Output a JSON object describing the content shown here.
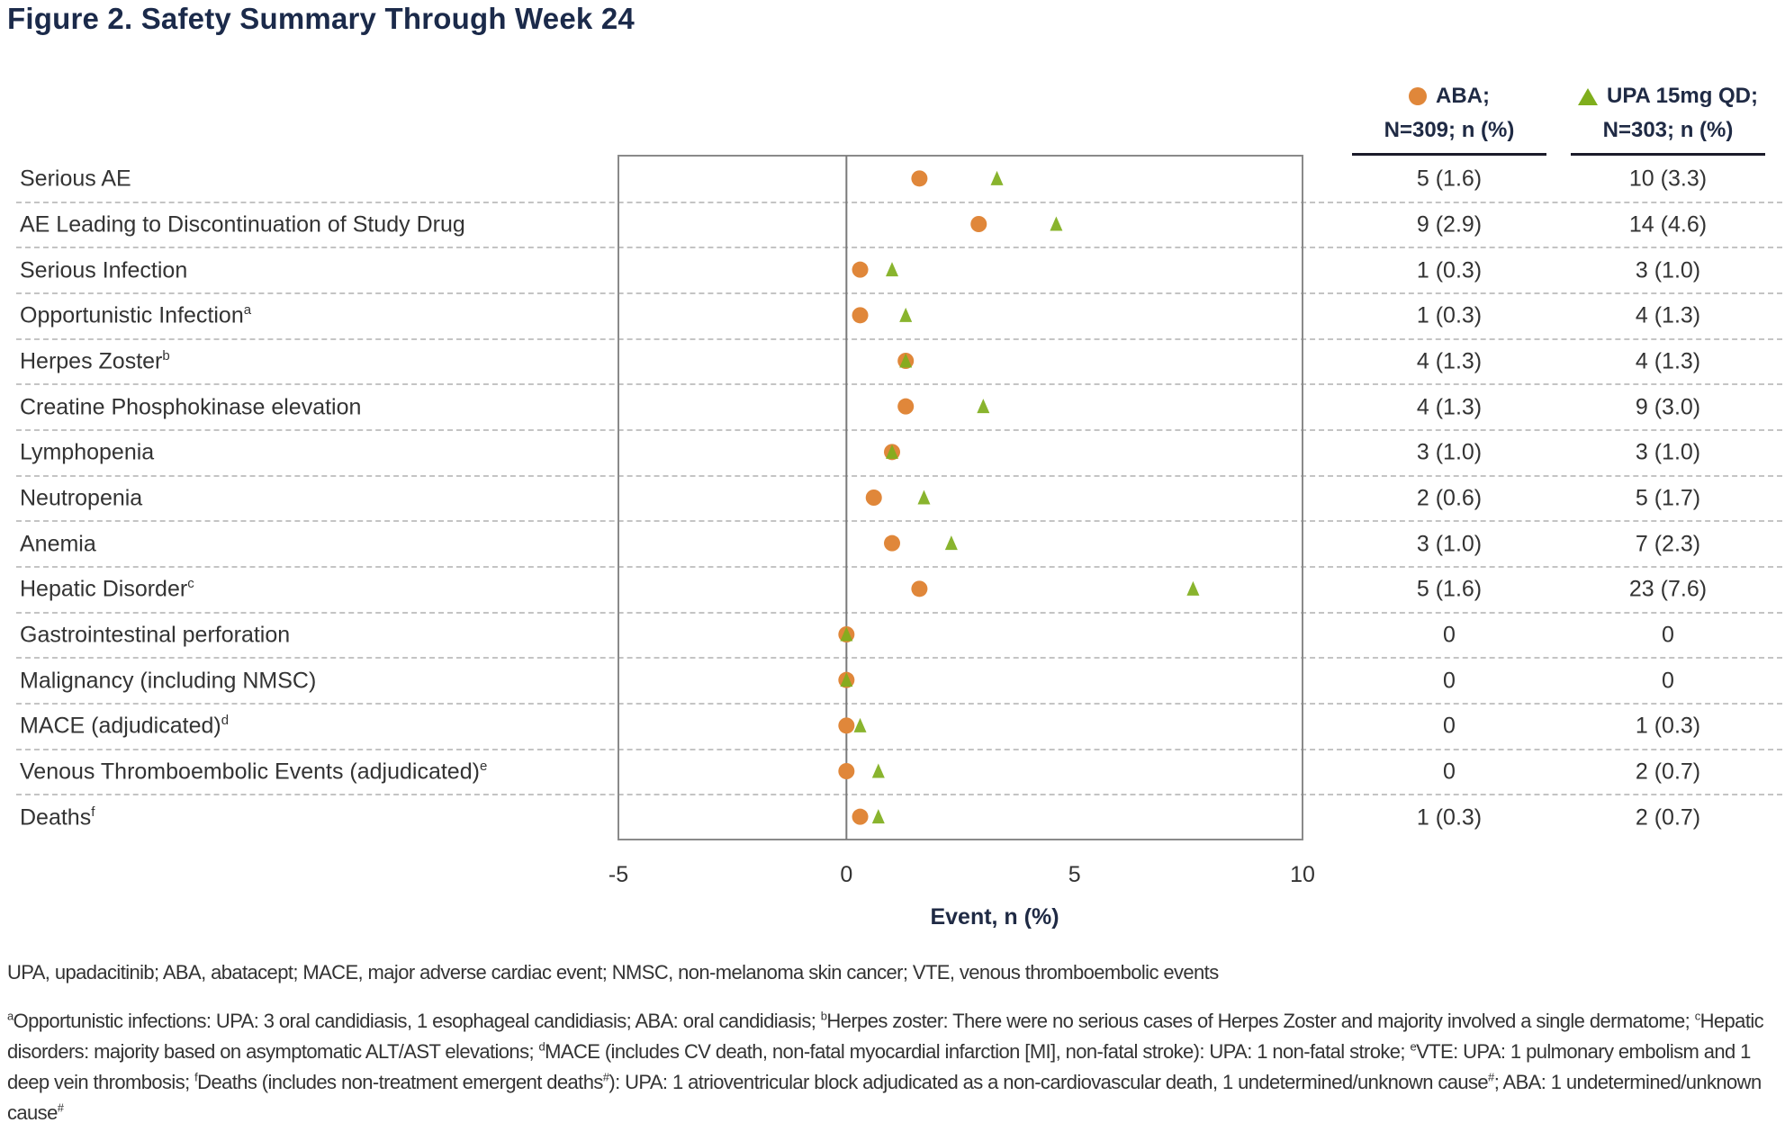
{
  "title": "Figure 2. Safety Summary Through Week 24",
  "colors": {
    "aba": "#e0873a",
    "upa": "#7fae1c",
    "frame": "#8a8a8a",
    "grid": "#c4c4c4",
    "title": "#1b2a4a"
  },
  "legend": {
    "aba": {
      "icon": "circle-marker-icon",
      "line1": "ABA;",
      "line2": "N=309; n (%)"
    },
    "upa": {
      "icon": "triangle-marker-icon",
      "line1": "UPA 15mg QD;",
      "line2": "N=303; n (%)"
    }
  },
  "chart_data": {
    "type": "scatter",
    "title": "Figure 2. Safety Summary Through Week 24",
    "xlabel": "Event, n (%)",
    "ylabel": "",
    "xlim": [
      -5,
      10
    ],
    "xticks": [
      "-5",
      "0",
      "5",
      "10"
    ],
    "xtick_values": [
      -5,
      0,
      5,
      10
    ],
    "reference_line_x": 0,
    "grid": "horizontal dashed row separators",
    "legend_position": "top-right",
    "categories": [
      {
        "label": "Serious AE",
        "sup": ""
      },
      {
        "label": "AE Leading to Discontinuation of Study Drug",
        "sup": ""
      },
      {
        "label": "Serious Infection",
        "sup": ""
      },
      {
        "label": "Opportunistic Infection",
        "sup": "a"
      },
      {
        "label": "Herpes Zoster",
        "sup": "b"
      },
      {
        "label": "Creatine Phosphokinase  elevation",
        "sup": ""
      },
      {
        "label": "Lymphopenia",
        "sup": ""
      },
      {
        "label": "Neutropenia",
        "sup": ""
      },
      {
        "label": "Anemia",
        "sup": ""
      },
      {
        "label": "Hepatic Disorder",
        "sup": "c"
      },
      {
        "label": "Gastrointestinal perforation",
        "sup": ""
      },
      {
        "label": "Malignancy (including NMSC)",
        "sup": ""
      },
      {
        "label": "MACE (adjudicated)",
        "sup": "d"
      },
      {
        "label": "Venous Thromboembolic  Events (adjudicated)",
        "sup": "e"
      },
      {
        "label": "Deaths",
        "sup": "f"
      }
    ],
    "series": [
      {
        "name": "ABA; N=309",
        "marker": "circle",
        "values": [
          1.6,
          2.9,
          0.3,
          0.3,
          1.3,
          1.3,
          1.0,
          0.6,
          1.0,
          1.6,
          0,
          0,
          0,
          0,
          0.3
        ],
        "display": [
          "5 (1.6)",
          "9 (2.9)",
          "1 (0.3)",
          "1 (0.3)",
          "4 (1.3)",
          "4 (1.3)",
          "3 (1.0)",
          "2 (0.6)",
          "3 (1.0)",
          "5 (1.6)",
          "0",
          "0",
          "0",
          "0",
          "1 (0.3)"
        ]
      },
      {
        "name": "UPA 15mg QD; N=303",
        "marker": "triangle",
        "values": [
          3.3,
          4.6,
          1.0,
          1.3,
          1.3,
          3.0,
          1.0,
          1.7,
          2.3,
          7.6,
          0,
          0,
          0.3,
          0.7,
          0.7
        ],
        "display": [
          "10 (3.3)",
          "14 (4.6)",
          "3 (1.0)",
          "4 (1.3)",
          "4 (1.3)",
          "9 (3.0)",
          "3 (1.0)",
          "5 (1.7)",
          "7 (2.3)",
          "23 (7.6)",
          "0",
          "0",
          "1 (0.3)",
          "2 (0.7)",
          "2 (0.7)"
        ]
      }
    ]
  },
  "abbreviations": "UPA, upadacitinib; ABA, abatacept; MACE, major adverse cardiac event; NMSC, non-melanoma skin cancer; VTE, venous thromboembolic events",
  "footnotes": [
    {
      "sup": "a",
      "text": "Opportunistic infections: UPA: 3 oral candidiasis, 1 esophageal candidiasis; ABA: oral candidiasis; "
    },
    {
      "sup": "b",
      "text": "Herpes zoster: There were no serious cases of Herpes Zoster and majority involved a single dermatome; "
    },
    {
      "sup": "c",
      "text": "Hepatic disorders: majority based on asymptomatic ALT/AST elevations; "
    },
    {
      "sup": "d",
      "text": "MACE (includes CV death, non-fatal myocardial infarction [MI], non-fatal stroke): UPA: 1 non-fatal stroke; "
    },
    {
      "sup": "e",
      "text": "VTE: UPA: 1 pulmonary embolism and 1 deep vein thrombosis; "
    },
    {
      "sup": "f",
      "text": "Deaths (includes non-treatment emergent deaths"
    },
    {
      "sup": "#",
      "text": "): UPA: 1 atrioventricular block adjudicated as a non-cardiovascular death, 1 undetermined/unknown cause"
    },
    {
      "sup": "#",
      "text": "; ABA: 1 undetermined/unknown cause"
    },
    {
      "sup": "#",
      "text": ""
    }
  ]
}
